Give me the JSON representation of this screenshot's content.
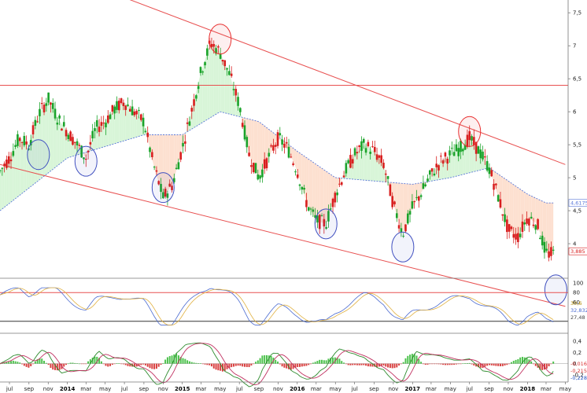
{
  "chart_data": [
    {
      "type": "candlestick",
      "panel": "price",
      "x_start": "2013-06",
      "x_end": "2018-05",
      "ylim": [
        3.5,
        7.55
      ],
      "yticks": [
        "7,5",
        "7",
        "6,5",
        "6",
        "5,5",
        "5",
        "4,5",
        "4"
      ],
      "ytick_values": [
        7.5,
        7.0,
        6.5,
        6.0,
        5.5,
        5.0,
        4.5,
        4.0
      ],
      "x_tick_labels": [
        "jul",
        "sep",
        "nov",
        "2014",
        "mar",
        "may",
        "jul",
        "sep",
        "nov",
        "2015",
        "mar",
        "may",
        "jul",
        "sep",
        "nov",
        "2016",
        "mar",
        "may",
        "jul",
        "sep",
        "nov",
        "2017",
        "mar",
        "may",
        "jul",
        "sep",
        "nov",
        "2018",
        "mar",
        "may"
      ],
      "x_tick_dates": [
        "2013-07",
        "2013-09",
        "2013-11",
        "2014-01",
        "2014-03",
        "2014-05",
        "2014-07",
        "2014-09",
        "2014-11",
        "2015-01",
        "2015-03",
        "2015-05",
        "2015-07",
        "2015-09",
        "2015-11",
        "2016-01",
        "2016-03",
        "2016-05",
        "2016-07",
        "2016-09",
        "2016-11",
        "2017-01",
        "2017-03",
        "2017-05",
        "2017-07",
        "2017-09",
        "2017-11",
        "2018-01",
        "2018-03",
        "2018-05"
      ],
      "close_path": [
        [
          "2013-06-01",
          5.1
        ],
        [
          "2013-07-01",
          5.3
        ],
        [
          "2013-08-01",
          5.6
        ],
        [
          "2013-09-01",
          5.5
        ],
        [
          "2013-10-01",
          5.95
        ],
        [
          "2013-11-01",
          6.2
        ],
        [
          "2013-12-01",
          5.9
        ],
        [
          "2014-01-01",
          5.7
        ],
        [
          "2014-02-01",
          5.5
        ],
        [
          "2014-03-01",
          5.3
        ],
        [
          "2014-04-01",
          5.75
        ],
        [
          "2014-05-01",
          5.85
        ],
        [
          "2014-06-01",
          6.05
        ],
        [
          "2014-07-01",
          6.15
        ],
        [
          "2014-08-01",
          6.0
        ],
        [
          "2014-09-01",
          5.85
        ],
        [
          "2014-10-01",
          5.2
        ],
        [
          "2014-11-01",
          4.7
        ],
        [
          "2014-12-01",
          4.9
        ],
        [
          "2015-01-01",
          5.45
        ],
        [
          "2015-02-01",
          6.05
        ],
        [
          "2015-03-01",
          6.6
        ],
        [
          "2015-04-01",
          7.05
        ],
        [
          "2015-05-01",
          6.9
        ],
        [
          "2015-06-01",
          6.55
        ],
        [
          "2015-07-01",
          6.1
        ],
        [
          "2015-08-01",
          5.35
        ],
        [
          "2015-09-01",
          5.0
        ],
        [
          "2015-10-01",
          5.3
        ],
        [
          "2015-11-01",
          5.6
        ],
        [
          "2015-12-01",
          5.45
        ],
        [
          "2016-01-01",
          5.1
        ],
        [
          "2016-02-01",
          4.6
        ],
        [
          "2016-03-01",
          4.35
        ],
        [
          "2016-04-01",
          4.3
        ],
        [
          "2016-05-01",
          4.75
        ],
        [
          "2016-06-01",
          5.1
        ],
        [
          "2016-07-01",
          5.35
        ],
        [
          "2016-08-01",
          5.5
        ],
        [
          "2016-09-01",
          5.4
        ],
        [
          "2016-10-01",
          5.2
        ],
        [
          "2016-11-01",
          4.6
        ],
        [
          "2016-12-01",
          4.15
        ],
        [
          "2017-01-01",
          4.55
        ],
        [
          "2017-02-01",
          4.8
        ],
        [
          "2017-03-01",
          5.05
        ],
        [
          "2017-04-01",
          5.25
        ],
        [
          "2017-05-01",
          5.35
        ],
        [
          "2017-06-01",
          5.45
        ],
        [
          "2017-07-01",
          5.6
        ],
        [
          "2017-08-01",
          5.4
        ],
        [
          "2017-09-01",
          5.15
        ],
        [
          "2017-10-01",
          4.7
        ],
        [
          "2017-11-01",
          4.2
        ],
        [
          "2017-12-01",
          4.1
        ],
        [
          "2018-01-01",
          4.4
        ],
        [
          "2018-02-01",
          4.3
        ],
        [
          "2018-03-01",
          3.85
        ]
      ],
      "moving_average": [
        [
          "2013-06-01",
          4.5
        ],
        [
          "2014-01-01",
          5.3
        ],
        [
          "2014-09-01",
          5.65
        ],
        [
          "2015-01-01",
          5.65
        ],
        [
          "2015-05-01",
          6.0
        ],
        [
          "2015-09-01",
          5.85
        ],
        [
          "2016-01-01",
          5.4
        ],
        [
          "2016-05-01",
          5.0
        ],
        [
          "2016-09-01",
          4.95
        ],
        [
          "2017-01-01",
          4.9
        ],
        [
          "2017-05-01",
          5.0
        ],
        [
          "2017-09-01",
          5.15
        ],
        [
          "2018-01-01",
          4.75
        ],
        [
          "2018-03-01",
          4.6175
        ]
      ],
      "horizontal_line": 6.4,
      "channel_upper": [
        [
          "2014-02-01",
          8.0
        ],
        [
          "2018-05-01",
          5.2
        ]
      ],
      "channel_lower": [
        [
          "2013-06-01",
          5.2
        ],
        [
          "2018-05-01",
          3.05
        ]
      ],
      "circles": [
        {
          "date": "2013-10-01",
          "value": 5.35
        },
        {
          "date": "2014-03-01",
          "value": 5.25
        },
        {
          "date": "2014-11-01",
          "value": 4.85
        },
        {
          "date": "2015-05-01",
          "value": 7.1,
          "color": "#e83030"
        },
        {
          "date": "2016-04-01",
          "value": 4.3
        },
        {
          "date": "2016-12-01",
          "value": 3.95
        },
        {
          "date": "2017-07-01",
          "value": 5.7,
          "color": "#e83030"
        },
        {
          "date": "2018-04-01",
          "value": 3.3
        }
      ],
      "current_price_label": "3,885",
      "moving_average_label": "4,6175",
      "colors": {
        "up": "#1aa32a",
        "down": "#d81e1e",
        "channel": "#e85050",
        "ma": "#5a78d8",
        "fill_up": "#d8f5d8",
        "fill_down": "#fde0d0",
        "circle": "#4050c0"
      }
    },
    {
      "type": "line",
      "panel": "oscillator",
      "yticks": [
        "100",
        "80",
        "60"
      ],
      "ytick_values": [
        100,
        80,
        60
      ],
      "ylim": [
        0,
        105
      ],
      "upper_band": 80,
      "lower_band": 20,
      "value_labels": [
        "30,6",
        "32,832",
        "27,48"
      ]
    },
    {
      "type": "bar",
      "panel": "macd",
      "yticks": [
        "0,4",
        "0,2",
        "0",
        "-0,2"
      ],
      "ytick_values": [
        0.4,
        0.2,
        0,
        -0.2
      ],
      "ylim": [
        -0.3,
        0.5
      ],
      "value_labels": [
        "-0,016",
        "-0,215",
        "-0,228"
      ]
    }
  ]
}
